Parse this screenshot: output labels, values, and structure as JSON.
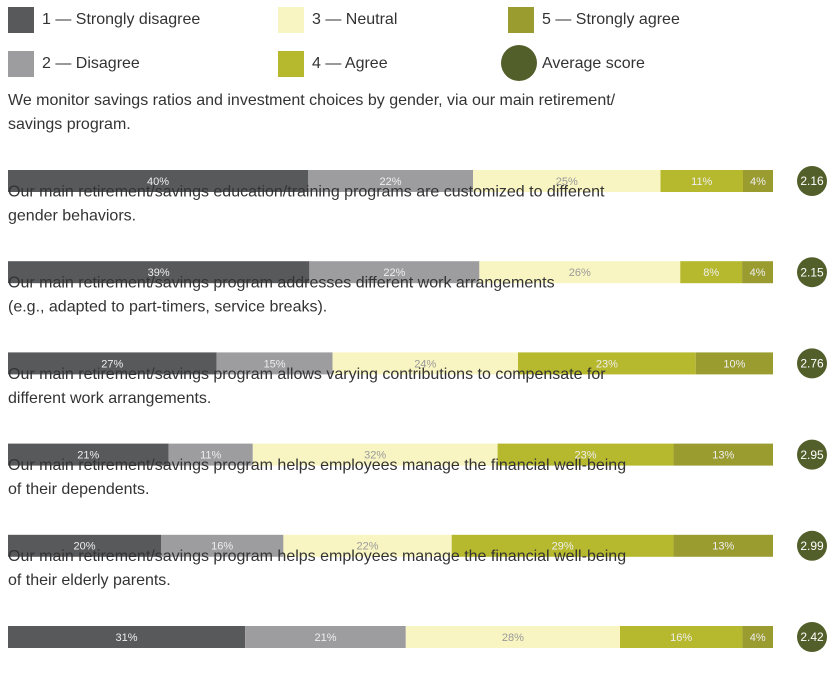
{
  "chart_data": {
    "type": "stacked-bar",
    "categories": [
      [
        "We monitor savings ratios and investment choices by gender, via our main retirement/",
        "savings program."
      ],
      [
        "Our main retirement/savings education/training programs are customized to different",
        "gender behaviors."
      ],
      [
        "Our main retirement/savings program addresses different work arrangements",
        "(e.g., adapted to part-timers, service breaks)."
      ],
      [
        "Our main retirement/savings program allows varying contributions to compensate for",
        "different work arrangements."
      ],
      [
        "Our main retirement/savings program helps employees manage the financial well-being",
        "of their dependents."
      ],
      [
        "Our main retirement/savings program helps employees manage the financial well-being",
        "of their elderly parents."
      ]
    ],
    "series": [
      {
        "name": "1 — Strongly disagree",
        "color": "#58595b",
        "values": [
          40,
          39,
          27,
          21,
          20,
          31
        ],
        "value_labels": [
          "40%",
          "39%",
          "27%",
          "21%",
          "20%",
          "31%"
        ]
      },
      {
        "name": "2 — Disagree",
        "color": "#9d9d9f",
        "values": [
          22,
          22,
          15,
          11,
          16,
          21
        ],
        "value_labels": [
          "22%",
          "22%",
          "15%",
          "11%",
          "16%",
          "21%"
        ]
      },
      {
        "name": "3 — Neutral",
        "color": "#f8f5c2",
        "values": [
          25,
          26,
          24,
          32,
          22,
          28
        ],
        "value_labels": [
          "25%",
          "26%",
          "24%",
          "32%",
          "22%",
          "28%"
        ]
      },
      {
        "name": "4 — Agree",
        "color": "#b6b82d",
        "values": [
          11,
          8,
          23,
          23,
          29,
          16
        ],
        "value_labels": [
          "11%",
          "8%",
          "23%",
          "23%",
          "29%",
          "16%"
        ]
      },
      {
        "name": "5 — Strongly agree",
        "color": "#9a9c30",
        "values": [
          4,
          4,
          10,
          13,
          13,
          4
        ],
        "value_labels": [
          "4%",
          "4%",
          "10%",
          "13%",
          "13%",
          "4%"
        ]
      }
    ],
    "average_score": {
      "name": "Average score",
      "color": "#535f2a",
      "values": [
        2.16,
        2.15,
        2.76,
        2.95,
        2.99,
        2.42
      ]
    }
  }
}
